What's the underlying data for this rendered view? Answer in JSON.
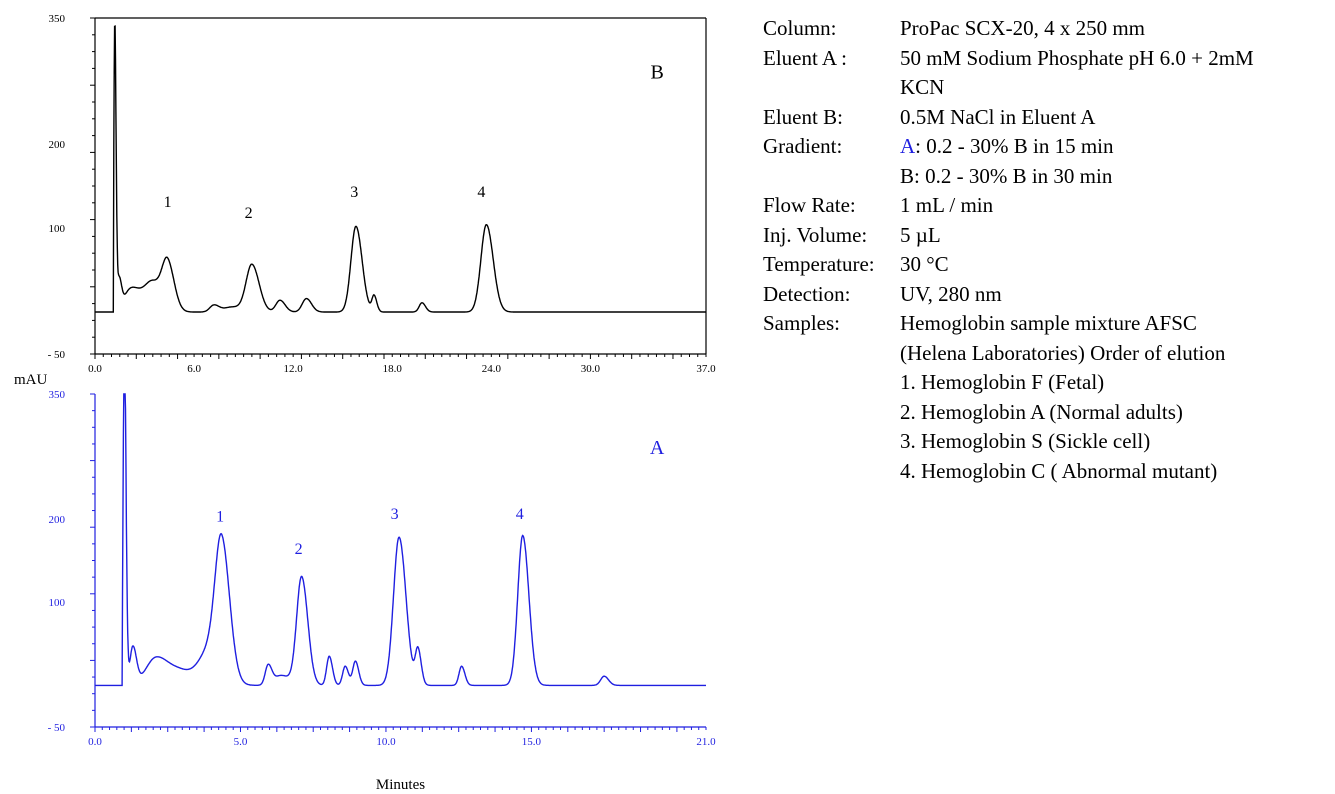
{
  "chart_data": [
    {
      "id": "B",
      "type": "line",
      "panel_label": "B",
      "color": "#000000",
      "ylabel": "mAU",
      "xlim": [
        0,
        37
      ],
      "ylim": [
        -50,
        350
      ],
      "x_ticks": [
        "0.0",
        "6.0",
        "12.0",
        "18.0",
        "24.0",
        "30.0",
        "37.0"
      ],
      "x_tick_values": [
        0,
        6,
        12,
        18,
        24,
        30,
        37
      ],
      "y_ticks": [
        "350",
        "200",
        "100",
        "- 50"
      ],
      "y_tick_values": [
        350,
        200,
        100,
        -50
      ],
      "baseline": 0,
      "peaks": [
        {
          "rt": 1.2,
          "height": 340,
          "width": 0.06
        },
        {
          "rt": 1.45,
          "height": 35,
          "width": 0.12
        },
        {
          "rt": 2.2,
          "height": 28,
          "width": 0.45
        },
        {
          "rt": 3.5,
          "height": 35,
          "width": 0.5
        },
        {
          "rt": 4.4,
          "height": 52,
          "width": 0.32
        },
        {
          "rt": 7.2,
          "height": 8,
          "width": 0.25
        },
        {
          "rt": 8.3,
          "height": 6,
          "width": 0.5
        },
        {
          "rt": 9.5,
          "height": 56,
          "width": 0.35
        },
        {
          "rt": 11.2,
          "height": 14,
          "width": 0.25
        },
        {
          "rt": 12.8,
          "height": 16,
          "width": 0.25
        },
        {
          "rt": 15.8,
          "height": 102,
          "width": 0.3
        },
        {
          "rt": 16.9,
          "height": 19,
          "width": 0.13
        },
        {
          "rt": 19.8,
          "height": 11,
          "width": 0.17
        },
        {
          "rt": 23.7,
          "height": 104,
          "width": 0.33
        }
      ],
      "peak_labels": [
        {
          "label": "1",
          "x": 4.4,
          "y": 125
        },
        {
          "label": "2",
          "x": 9.3,
          "y": 112
        },
        {
          "label": "3",
          "x": 15.7,
          "y": 137
        },
        {
          "label": "4",
          "x": 23.4,
          "y": 137
        }
      ]
    },
    {
      "id": "A",
      "type": "line",
      "panel_label": "A",
      "color": "#1f1fe0",
      "xlabel": "Minutes",
      "xlim": [
        0,
        21
      ],
      "ylim": [
        -50,
        350
      ],
      "x_ticks": [
        "0.0",
        "5.0",
        "10.0",
        "15.0",
        "21.0"
      ],
      "x_tick_values": [
        0,
        5,
        10,
        15,
        21
      ],
      "y_ticks": [
        "350",
        "200",
        "100",
        "- 50"
      ],
      "y_tick_values": [
        350,
        200,
        100,
        -50
      ],
      "baseline": 0,
      "peaks": [
        {
          "rt": 1.02,
          "height": 300,
          "width": 0.045
        },
        {
          "rt": 1.0,
          "height": 170,
          "width": 0.03
        },
        {
          "rt": 1.3,
          "height": 45,
          "width": 0.1
        },
        {
          "rt": 2.1,
          "height": 33,
          "width": 0.35
        },
        {
          "rt": 3.0,
          "height": 15,
          "width": 0.4
        },
        {
          "rt": 3.95,
          "height": 40,
          "width": 0.35
        },
        {
          "rt": 4.35,
          "height": 155,
          "width": 0.22
        },
        {
          "rt": 5.95,
          "height": 23,
          "width": 0.1
        },
        {
          "rt": 6.4,
          "height": 12,
          "width": 0.25
        },
        {
          "rt": 7.1,
          "height": 130,
          "width": 0.17
        },
        {
          "rt": 8.05,
          "height": 35,
          "width": 0.09
        },
        {
          "rt": 8.6,
          "height": 23,
          "width": 0.09
        },
        {
          "rt": 8.95,
          "height": 29,
          "width": 0.09
        },
        {
          "rt": 10.45,
          "height": 178,
          "width": 0.19
        },
        {
          "rt": 11.1,
          "height": 42,
          "width": 0.09
        },
        {
          "rt": 12.6,
          "height": 23,
          "width": 0.09
        },
        {
          "rt": 14.7,
          "height": 180,
          "width": 0.17
        },
        {
          "rt": 17.5,
          "height": 11,
          "width": 0.12
        }
      ],
      "peak_labels": [
        {
          "label": "1",
          "x": 4.3,
          "y": 197
        },
        {
          "label": "2",
          "x": 7.0,
          "y": 158
        },
        {
          "label": "3",
          "x": 10.3,
          "y": 200
        },
        {
          "label": "4",
          "x": 14.6,
          "y": 200
        }
      ]
    }
  ],
  "info": {
    "rows": [
      {
        "key": "Column:",
        "value": "ProPac SCX-20, 4 x 250 mm"
      },
      {
        "key": "Eluent A :",
        "value": "50 mM Sodium Phosphate pH 6.0 + 2mM"
      },
      {
        "key": "",
        "value": "KCN"
      },
      {
        "key": "Eluent B:",
        "value": "0.5M NaCl in Eluent A"
      },
      {
        "key": "Gradient:",
        "value": "A: 0.2 - 30% B in 15 min"
      },
      {
        "key": "",
        "value": "B: 0.2 - 30% B in 30 min"
      },
      {
        "key": "Flow Rate:",
        "value": "1 mL / min"
      },
      {
        "key": "Inj. Volume:",
        "value": "5 µL"
      },
      {
        "key": "Temperature:",
        "value": "30 °C"
      },
      {
        "key": "Detection:",
        "value": "UV, 280 nm"
      },
      {
        "key": "Samples:",
        "value": "Hemoglobin sample mixture AFSC"
      },
      {
        "key": "",
        "value": "(Helena Laboratories) Order of elution"
      },
      {
        "key": "",
        "value": "1. Hemoglobin F (Fetal)"
      },
      {
        "key": "",
        "value": "2. Hemoglobin A (Normal adults)"
      },
      {
        "key": "",
        "value": "3. Hemoglobin S (Sickle cell)"
      },
      {
        "key": "",
        "value": "4. Hemoglobin C ( Abnormal mutant)"
      }
    ],
    "gradient_prefix": "A",
    "gradient_rest": ": 0.2 - 30% B in 15 min"
  }
}
